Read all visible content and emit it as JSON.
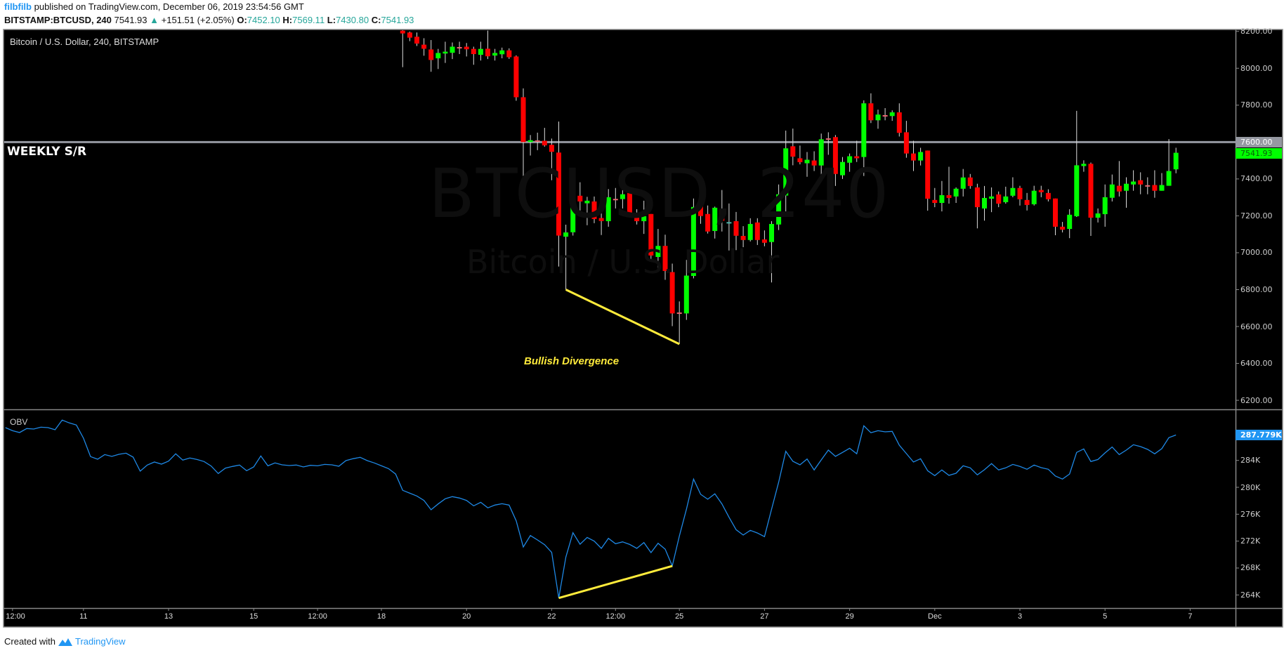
{
  "header": {
    "user": "filbfilb",
    "published": " published on TradingView.com, December 06, 2019 23:54:56 GMT",
    "symbol": "BITSTAMP:BTCUSD, 240",
    "last": "7541.93",
    "arrow": "▲",
    "change": "+151.51 (+2.05%)",
    "o_label": "O:",
    "o": "7452.10",
    "h_label": "H:",
    "h": "7569.11",
    "l_label": "L:",
    "l": "7430.80",
    "c_label": "C:",
    "c": "7541.93"
  },
  "chart": {
    "title": "Bitcoin / U.S. Dollar, 240, BITSTAMP",
    "watermark_symbol": "BTCUSD, 240",
    "watermark_name": "Bitcoin / U.S. Dollar",
    "sr_label": "WEEKLY S/R",
    "divergence_label": "Bullish Divergence",
    "indicator_label": "OBV",
    "sr_tag": "7600.00",
    "price_tag": "7541.93",
    "obv_tag": "287.779K"
  },
  "colors": {
    "up": "#00ff00",
    "down": "#ff0000",
    "doji_down": "#e8646e",
    "doji_up": "#4db6ac",
    "wick": "#dddddd",
    "obv": "#1e88e5",
    "annotation": "#ffeb3b",
    "sr_line": "#9598a1"
  },
  "chart_data": {
    "type": "candlestick",
    "price_axis": {
      "ticks": [
        "8200.00",
        "8000.00",
        "7800.00",
        "7600.00",
        "7400.00",
        "7200.00",
        "7000.00",
        "6800.00",
        "6600.00",
        "6400.00",
        "6200.00"
      ],
      "range": [
        6200,
        8200
      ]
    },
    "obv_axis": {
      "ticks": [
        "284K",
        "280K",
        "276K",
        "272K",
        "268K",
        "264K"
      ],
      "range_k": [
        264,
        284
      ]
    },
    "x_axis": [
      {
        "label": "12:00",
        "bar": -54
      },
      {
        "label": "11",
        "bar": -44
      },
      {
        "label": "13",
        "bar": -32
      },
      {
        "label": "15",
        "bar": -20
      },
      {
        "label": "12:00",
        "bar": -11
      },
      {
        "label": "18",
        "bar": -2
      },
      {
        "label": "20",
        "bar": 10
      },
      {
        "label": "22",
        "bar": 22
      },
      {
        "label": "12:00",
        "bar": 31
      },
      {
        "label": "25",
        "bar": 40
      },
      {
        "label": "27",
        "bar": 52
      },
      {
        "label": "29",
        "bar": 64
      },
      {
        "label": "Dec",
        "bar": 76
      },
      {
        "label": "3",
        "bar": 88
      },
      {
        "label": "5",
        "bar": 100
      },
      {
        "label": "7",
        "bar": 112
      }
    ],
    "sr_level": 7600,
    "ohlc_first_bar": 1,
    "ohlc": [
      [
        8204,
        8230,
        8006,
        8189
      ],
      [
        8194,
        8199,
        8147,
        8166
      ],
      [
        8171,
        8194,
        8121,
        8134
      ],
      [
        8128,
        8163,
        8068,
        8106
      ],
      [
        8102,
        8153,
        7981,
        8045
      ],
      [
        8054,
        8105,
        7996,
        8083
      ],
      [
        8080,
        8144,
        8029,
        8090
      ],
      [
        8084,
        8140,
        8050,
        8117
      ],
      [
        8115,
        8144,
        8077,
        8114
      ],
      [
        8117,
        8137,
        8064,
        8103
      ],
      [
        8105,
        8117,
        8019,
        8077
      ],
      [
        8073,
        8144,
        8042,
        8105
      ],
      [
        8106,
        8204,
        8050,
        8065
      ],
      [
        8069,
        8105,
        8042,
        8083
      ],
      [
        8076,
        8112,
        8054,
        8097
      ],
      [
        8097,
        8108,
        8051,
        8060
      ],
      [
        8064,
        8070,
        7824,
        7843
      ],
      [
        7843,
        7891,
        7387,
        7600
      ],
      [
        7600,
        7638,
        7527,
        7610
      ],
      [
        7609,
        7651,
        7556,
        7608
      ],
      [
        7607,
        7677,
        7575,
        7582
      ],
      [
        7585,
        7619,
        7393,
        7547
      ],
      [
        7543,
        7711,
        6925,
        7093
      ],
      [
        7087,
        7152,
        6800,
        7110
      ],
      [
        7111,
        7351,
        7093,
        7311
      ],
      [
        7309,
        7382,
        7202,
        7278
      ],
      [
        7268,
        7303,
        7149,
        7282
      ],
      [
        7278,
        7305,
        7160,
        7183
      ],
      [
        7188,
        7226,
        7096,
        7172
      ],
      [
        7171,
        7345,
        7141,
        7301
      ],
      [
        7292,
        7351,
        7240,
        7290
      ],
      [
        7291,
        7340,
        7240,
        7317
      ],
      [
        7324,
        7344,
        7195,
        7213
      ],
      [
        7210,
        7236,
        7153,
        7171
      ],
      [
        7171,
        7282,
        7102,
        7198
      ],
      [
        7210,
        7210,
        6961,
        6985
      ],
      [
        6977,
        7129,
        6911,
        7037
      ],
      [
        7037,
        7098,
        6853,
        6901
      ],
      [
        6895,
        6941,
        6602,
        6671
      ],
      [
        6676,
        6736,
        6505,
        6674
      ],
      [
        6671,
        6961,
        6636,
        6876
      ],
      [
        6874,
        7294,
        6861,
        7248
      ],
      [
        7256,
        7374,
        7157,
        7199
      ],
      [
        7210,
        7256,
        7104,
        7115
      ],
      [
        7118,
        7250,
        7077,
        7244
      ],
      [
        7233,
        7340,
        7115,
        7173
      ],
      [
        7164,
        7267,
        7012,
        7166
      ],
      [
        7171,
        7221,
        7014,
        7092
      ],
      [
        7091,
        7144,
        7030,
        7069
      ],
      [
        7069,
        7187,
        7061,
        7156
      ],
      [
        7164,
        7187,
        7042,
        7069
      ],
      [
        7072,
        7121,
        7035,
        7054
      ],
      [
        7058,
        7171,
        6839,
        7156
      ],
      [
        7153,
        7370,
        7123,
        7317
      ],
      [
        7310,
        7662,
        7218,
        7566
      ],
      [
        7577,
        7673,
        7474,
        7521
      ],
      [
        7512,
        7581,
        7479,
        7491
      ],
      [
        7485,
        7546,
        7412,
        7504
      ],
      [
        7500,
        7550,
        7443,
        7473
      ],
      [
        7473,
        7646,
        7416,
        7615
      ],
      [
        7620,
        7653,
        7531,
        7618
      ],
      [
        7627,
        7638,
        7362,
        7427
      ],
      [
        7420,
        7519,
        7400,
        7492
      ],
      [
        7488,
        7538,
        7439,
        7523
      ],
      [
        7523,
        7607,
        7492,
        7512
      ],
      [
        7519,
        7826,
        7416,
        7810
      ],
      [
        7810,
        7864,
        7703,
        7718
      ],
      [
        7718,
        7776,
        7672,
        7749
      ],
      [
        7746,
        7784,
        7718,
        7744
      ],
      [
        7741,
        7772,
        7715,
        7761
      ],
      [
        7761,
        7810,
        7630,
        7650
      ],
      [
        7653,
        7715,
        7515,
        7538
      ],
      [
        7538,
        7607,
        7443,
        7500
      ],
      [
        7500,
        7569,
        7473,
        7546
      ],
      [
        7554,
        7554,
        7228,
        7293
      ],
      [
        7286,
        7351,
        7247,
        7270
      ],
      [
        7270,
        7389,
        7224,
        7312
      ],
      [
        7312,
        7466,
        7266,
        7297
      ],
      [
        7305,
        7354,
        7270,
        7347
      ],
      [
        7347,
        7454,
        7305,
        7408
      ],
      [
        7408,
        7427,
        7347,
        7362
      ],
      [
        7354,
        7374,
        7132,
        7247
      ],
      [
        7240,
        7362,
        7174,
        7297
      ],
      [
        7293,
        7354,
        7220,
        7305
      ],
      [
        7316,
        7332,
        7247,
        7266
      ],
      [
        7274,
        7358,
        7266,
        7305
      ],
      [
        7309,
        7409,
        7301,
        7351
      ],
      [
        7351,
        7363,
        7256,
        7290
      ],
      [
        7286,
        7324,
        7229,
        7259
      ],
      [
        7263,
        7363,
        7256,
        7336
      ],
      [
        7340,
        7363,
        7301,
        7328
      ],
      [
        7324,
        7344,
        7278,
        7290
      ],
      [
        7294,
        7294,
        7095,
        7141
      ],
      [
        7141,
        7167,
        7110,
        7125
      ],
      [
        7129,
        7236,
        7079,
        7206
      ],
      [
        7198,
        7769,
        7194,
        7474
      ],
      [
        7470,
        7501,
        7439,
        7482
      ],
      [
        7482,
        7489,
        7091,
        7190
      ],
      [
        7190,
        7240,
        7164,
        7213
      ],
      [
        7209,
        7370,
        7141,
        7301
      ],
      [
        7298,
        7424,
        7278,
        7370
      ],
      [
        7363,
        7497,
        7305,
        7332
      ],
      [
        7336,
        7409,
        7244,
        7374
      ],
      [
        7370,
        7447,
        7336,
        7386
      ],
      [
        7393,
        7436,
        7317,
        7370
      ],
      [
        7366,
        7409,
        7317,
        7365
      ],
      [
        7367,
        7447,
        7298,
        7336
      ],
      [
        7336,
        7432,
        7336,
        7367
      ],
      [
        7363,
        7616,
        7363,
        7443
      ],
      [
        7452.1,
        7569.11,
        7430.8,
        7541.93
      ]
    ],
    "obv_first_bar": -55,
    "obv_k": [
      288.87,
      288.42,
      288.14,
      288.74,
      288.67,
      288.94,
      288.87,
      288.56,
      289.99,
      289.57,
      289.26,
      287.31,
      284.56,
      284.18,
      284.87,
      284.59,
      284.91,
      285.08,
      284.49,
      282.4,
      283.31,
      283.76,
      283.45,
      283.9,
      284.98,
      284.04,
      284.35,
      284.14,
      283.83,
      283.17,
      282.05,
      282.85,
      283.1,
      283.31,
      282.47,
      283.03,
      284.66,
      283.2,
      283.62,
      283.34,
      283.24,
      283.31,
      283.03,
      283.27,
      283.2,
      283.41,
      283.34,
      283.13,
      283.97,
      284.25,
      284.46,
      283.97,
      283.62,
      283.2,
      282.78,
      281.98,
      279.55,
      279.13,
      278.71,
      278.05,
      276.66,
      277.53,
      278.3,
      278.61,
      278.4,
      278.05,
      277.25,
      277.77,
      276.94,
      277.36,
      277.56,
      277.36,
      275.02,
      271.13,
      272.83,
      272.17,
      271.47,
      270.33,
      263.54,
      269.63,
      273.25,
      271.54,
      272.55,
      272.0,
      270.92,
      272.41,
      271.61,
      271.89,
      271.51,
      270.92,
      271.79,
      270.29,
      271.68,
      270.81,
      268.31,
      272.76,
      276.76,
      281.22,
      278.96,
      278.23,
      279.03,
      277.53,
      275.54,
      273.7,
      272.9,
      273.6,
      273.21,
      272.66,
      276.76,
      280.77,
      285.36,
      283.86,
      283.34,
      284.21,
      282.58,
      284.07,
      285.53,
      284.59,
      285.19,
      285.81,
      284.98,
      289.15,
      288.11,
      288.42,
      288.25,
      288.32,
      286.26,
      285.01,
      283.76,
      284.25,
      282.47,
      281.74,
      282.58,
      281.78,
      282.09,
      283.2,
      282.89,
      281.85,
      282.61,
      283.52,
      282.58,
      282.89,
      283.41,
      283.1,
      282.68,
      283.31,
      282.92,
      282.68,
      281.67,
      281.22,
      281.98,
      285.19,
      285.71,
      283.83,
      284.14,
      285.12,
      285.99,
      284.87,
      285.53,
      286.33,
      286.06,
      285.64,
      284.98,
      285.74,
      287.38,
      287.78
    ],
    "divergence_price_line": [
      {
        "bar": 24,
        "price": 6800
      },
      {
        "bar": 40,
        "price": 6505
      }
    ],
    "divergence_obv_line": [
      {
        "bar": 23,
        "obv_k": 263.54
      },
      {
        "bar": 39,
        "obv_k": 268.31
      }
    ],
    "last_price": 7541.93,
    "last_obv_k": 287.779
  },
  "footer": {
    "created": "Created with",
    "brand": "TradingView"
  }
}
